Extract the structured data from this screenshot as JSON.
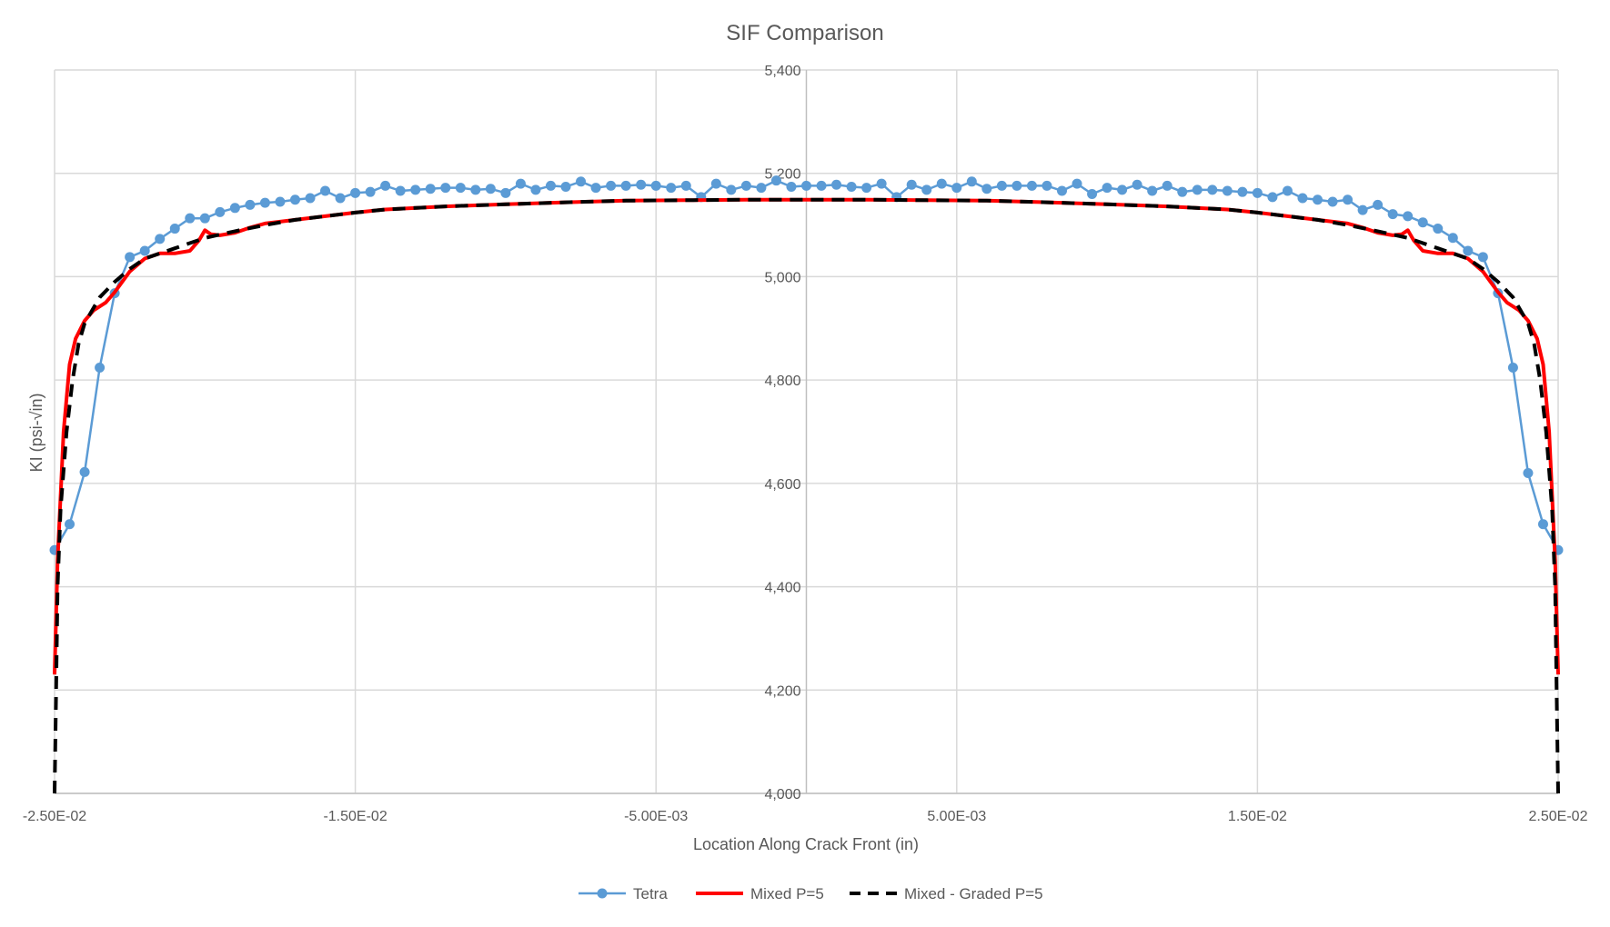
{
  "chart_data": {
    "type": "line",
    "title": "SIF Comparison",
    "xlabel": "Location Along Crack Front (in)",
    "ylabel": "KI (psi-√in)",
    "xlim": [
      -0.025,
      0.025
    ],
    "ylim": [
      4000,
      5400
    ],
    "x_ticks": [
      -0.025,
      -0.015,
      -0.005,
      0.005,
      0.015,
      0.025
    ],
    "x_tick_labels": [
      "-2.50E-02",
      "-1.50E-02",
      "-5.00E-03",
      "5.00E-03",
      "1.50E-02",
      "2.50E-02"
    ],
    "y_ticks": [
      4000,
      4200,
      4400,
      4600,
      4800,
      5000,
      5200,
      5400
    ],
    "y_tick_labels": [
      "4,000",
      "4,200",
      "4,400",
      "4,600",
      "4,800",
      "5,000",
      "5,200",
      "5,400"
    ],
    "grid": true,
    "legend_position": "bottom",
    "series": [
      {
        "name": "Tetra",
        "color": "#5B9BD5",
        "style": "line-with-markers",
        "x": [
          -0.025,
          -0.0245,
          -0.024,
          -0.0235,
          -0.023,
          -0.0225,
          -0.022,
          -0.0215,
          -0.021,
          -0.0205,
          -0.02,
          -0.0195,
          -0.019,
          -0.0185,
          -0.018,
          -0.0175,
          -0.017,
          -0.0165,
          -0.016,
          -0.0155,
          -0.015,
          -0.0145,
          -0.014,
          -0.0135,
          -0.013,
          -0.0125,
          -0.012,
          -0.0115,
          -0.011,
          -0.0105,
          -0.01,
          -0.0095,
          -0.009,
          -0.0085,
          -0.008,
          -0.0075,
          -0.007,
          -0.0065,
          -0.006,
          -0.0055,
          -0.005,
          -0.0045,
          -0.004,
          -0.0035,
          -0.003,
          -0.0025,
          -0.002,
          -0.0015,
          -0.001,
          -0.0005,
          0,
          0.0005,
          0.001,
          0.0015,
          0.002,
          0.0025,
          0.003,
          0.0035,
          0.004,
          0.0045,
          0.005,
          0.0055,
          0.006,
          0.0065,
          0.007,
          0.0075,
          0.008,
          0.0085,
          0.009,
          0.0095,
          0.01,
          0.0105,
          0.011,
          0.0115,
          0.012,
          0.0125,
          0.013,
          0.0135,
          0.014,
          0.0145,
          0.015,
          0.0155,
          0.016,
          0.0165,
          0.017,
          0.0175,
          0.018,
          0.0185,
          0.019,
          0.0195,
          0.02,
          0.0205,
          0.021,
          0.0215,
          0.022,
          0.0225,
          0.023,
          0.0235,
          0.024,
          0.0245,
          0.025
        ],
        "y": [
          4471,
          4521,
          4622,
          4824,
          4968,
          5038,
          5050,
          5073,
          5093,
          5113,
          5113,
          5125,
          5133,
          5139,
          5143,
          5145,
          5149,
          5152,
          5166,
          5152,
          5162,
          5164,
          5176,
          5166,
          5168,
          5170,
          5172,
          5172,
          5168,
          5170,
          5162,
          5180,
          5168,
          5176,
          5174,
          5184,
          5172,
          5176,
          5176,
          5178,
          5176,
          5172,
          5176,
          5154,
          5180,
          5168,
          5176,
          5172,
          5186,
          5174,
          5176,
          5176,
          5178,
          5174,
          5172,
          5180,
          5154,
          5178,
          5168,
          5180,
          5172,
          5184,
          5170,
          5176,
          5176,
          5176,
          5176,
          5166,
          5180,
          5160,
          5172,
          5168,
          5178,
          5166,
          5176,
          5164,
          5168,
          5168,
          5166,
          5164,
          5162,
          5154,
          5166,
          5152,
          5149,
          5145,
          5149,
          5129,
          5139,
          5121,
          5117,
          5105,
          5093,
          5075,
          5050,
          5038,
          4968,
          4824,
          4620,
          4521,
          4471
        ]
      },
      {
        "name": "Mixed P=5",
        "color": "#FF0000",
        "style": "solid",
        "x": [
          -0.025,
          -0.0249,
          -0.0247,
          -0.0245,
          -0.0243,
          -0.024,
          -0.0237,
          -0.0233,
          -0.023,
          -0.0225,
          -0.022,
          -0.0215,
          -0.021,
          -0.0205,
          -0.0202,
          -0.02,
          -0.0198,
          -0.0195,
          -0.019,
          -0.0185,
          -0.018,
          -0.017,
          -0.016,
          -0.015,
          -0.014,
          -0.012,
          -0.01,
          -0.008,
          -0.006,
          -0.004,
          -0.002,
          0,
          0.002,
          0.004,
          0.006,
          0.008,
          0.01,
          0.012,
          0.014,
          0.015,
          0.016,
          0.017,
          0.018,
          0.0185,
          0.019,
          0.0195,
          0.0198,
          0.02,
          0.0202,
          0.0205,
          0.021,
          0.0215,
          0.022,
          0.0225,
          0.023,
          0.0233,
          0.0237,
          0.024,
          0.0243,
          0.0245,
          0.0247,
          0.0249,
          0.025
        ],
        "y": [
          4230,
          4450,
          4700,
          4830,
          4880,
          4915,
          4935,
          4950,
          4970,
          5010,
          5035,
          5045,
          5045,
          5050,
          5070,
          5090,
          5082,
          5080,
          5085,
          5095,
          5103,
          5110,
          5117,
          5124,
          5130,
          5136,
          5140,
          5144,
          5147,
          5148,
          5149,
          5149,
          5149,
          5148,
          5147,
          5144,
          5140,
          5136,
          5130,
          5124,
          5117,
          5110,
          5103,
          5095,
          5085,
          5080,
          5082,
          5090,
          5070,
          5050,
          5045,
          5045,
          5035,
          5010,
          4970,
          4950,
          4935,
          4915,
          4880,
          4830,
          4700,
          4450,
          4230
        ]
      },
      {
        "name": "Mixed - Graded P=5",
        "color": "#000000",
        "style": "dashed",
        "x": [
          -0.025,
          -0.02495,
          -0.0249,
          -0.0248,
          -0.0246,
          -0.0244,
          -0.0242,
          -0.024,
          -0.0235,
          -0.023,
          -0.0225,
          -0.022,
          -0.021,
          -0.02,
          -0.019,
          -0.018,
          -0.017,
          -0.016,
          -0.015,
          -0.014,
          -0.012,
          -0.01,
          -0.008,
          -0.006,
          -0.004,
          -0.002,
          0,
          0.002,
          0.004,
          0.006,
          0.008,
          0.01,
          0.012,
          0.014,
          0.015,
          0.016,
          0.017,
          0.018,
          0.019,
          0.02,
          0.021,
          0.022,
          0.0225,
          0.023,
          0.0235,
          0.024,
          0.0242,
          0.0244,
          0.0246,
          0.0248,
          0.0249,
          0.02495,
          0.025
        ],
        "y": [
          4000,
          4200,
          4400,
          4550,
          4700,
          4800,
          4870,
          4910,
          4960,
          4990,
          5015,
          5035,
          5055,
          5075,
          5088,
          5100,
          5110,
          5117,
          5124,
          5130,
          5136,
          5140,
          5144,
          5147,
          5148,
          5149,
          5149,
          5149,
          5148,
          5147,
          5144,
          5140,
          5136,
          5130,
          5124,
          5117,
          5110,
          5100,
          5088,
          5075,
          5055,
          5035,
          5015,
          4990,
          4960,
          4910,
          4870,
          4800,
          4700,
          4550,
          4400,
          4200,
          4000
        ]
      }
    ]
  }
}
